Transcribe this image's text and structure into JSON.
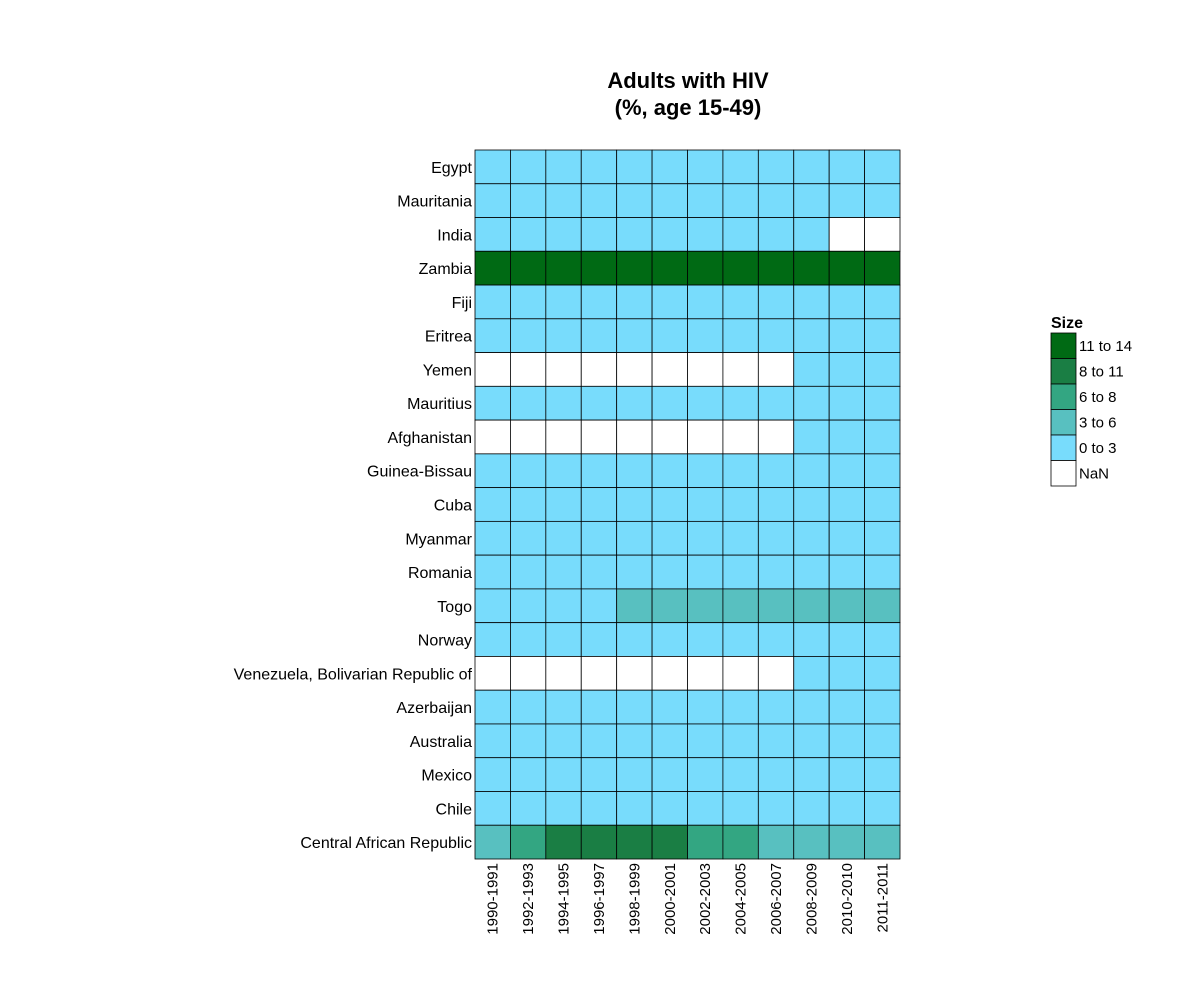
{
  "chart_data": {
    "type": "heatmap",
    "title": [
      "Adults with HIV",
      "(%, age 15-49)"
    ],
    "columns": [
      "1990-1991",
      "1992-1993",
      "1994-1995",
      "1996-1997",
      "1998-1999",
      "2000-2001",
      "2002-2003",
      "2004-2005",
      "2006-2007",
      "2008-2009",
      "2010-2010",
      "2011-2011"
    ],
    "rows": [
      "Egypt",
      "Mauritania",
      "India",
      "Zambia",
      "Fiji",
      "Eritrea",
      "Yemen",
      "Mauritius",
      "Afghanistan",
      "Guinea-Bissau",
      "Cuba",
      "Myanmar",
      "Romania",
      "Togo",
      "Norway",
      "Venezuela, Bolivarian Republic of",
      "Azerbaijan",
      "Australia",
      "Mexico",
      "Chile",
      "Central African Republic"
    ],
    "values": [
      [
        "0 to 3",
        "0 to 3",
        "0 to 3",
        "0 to 3",
        "0 to 3",
        "0 to 3",
        "0 to 3",
        "0 to 3",
        "0 to 3",
        "0 to 3",
        "0 to 3",
        "0 to 3"
      ],
      [
        "0 to 3",
        "0 to 3",
        "0 to 3",
        "0 to 3",
        "0 to 3",
        "0 to 3",
        "0 to 3",
        "0 to 3",
        "0 to 3",
        "0 to 3",
        "0 to 3",
        "0 to 3"
      ],
      [
        "0 to 3",
        "0 to 3",
        "0 to 3",
        "0 to 3",
        "0 to 3",
        "0 to 3",
        "0 to 3",
        "0 to 3",
        "0 to 3",
        "0 to 3",
        "NaN",
        "NaN"
      ],
      [
        "11 to 14",
        "11 to 14",
        "11 to 14",
        "11 to 14",
        "11 to 14",
        "11 to 14",
        "11 to 14",
        "11 to 14",
        "11 to 14",
        "11 to 14",
        "11 to 14",
        "11 to 14"
      ],
      [
        "0 to 3",
        "0 to 3",
        "0 to 3",
        "0 to 3",
        "0 to 3",
        "0 to 3",
        "0 to 3",
        "0 to 3",
        "0 to 3",
        "0 to 3",
        "0 to 3",
        "0 to 3"
      ],
      [
        "0 to 3",
        "0 to 3",
        "0 to 3",
        "0 to 3",
        "0 to 3",
        "0 to 3",
        "0 to 3",
        "0 to 3",
        "0 to 3",
        "0 to 3",
        "0 to 3",
        "0 to 3"
      ],
      [
        "NaN",
        "NaN",
        "NaN",
        "NaN",
        "NaN",
        "NaN",
        "NaN",
        "NaN",
        "NaN",
        "0 to 3",
        "0 to 3",
        "0 to 3"
      ],
      [
        "0 to 3",
        "0 to 3",
        "0 to 3",
        "0 to 3",
        "0 to 3",
        "0 to 3",
        "0 to 3",
        "0 to 3",
        "0 to 3",
        "0 to 3",
        "0 to 3",
        "0 to 3"
      ],
      [
        "NaN",
        "NaN",
        "NaN",
        "NaN",
        "NaN",
        "NaN",
        "NaN",
        "NaN",
        "NaN",
        "0 to 3",
        "0 to 3",
        "0 to 3"
      ],
      [
        "0 to 3",
        "0 to 3",
        "0 to 3",
        "0 to 3",
        "0 to 3",
        "0 to 3",
        "0 to 3",
        "0 to 3",
        "0 to 3",
        "0 to 3",
        "0 to 3",
        "0 to 3"
      ],
      [
        "0 to 3",
        "0 to 3",
        "0 to 3",
        "0 to 3",
        "0 to 3",
        "0 to 3",
        "0 to 3",
        "0 to 3",
        "0 to 3",
        "0 to 3",
        "0 to 3",
        "0 to 3"
      ],
      [
        "0 to 3",
        "0 to 3",
        "0 to 3",
        "0 to 3",
        "0 to 3",
        "0 to 3",
        "0 to 3",
        "0 to 3",
        "0 to 3",
        "0 to 3",
        "0 to 3",
        "0 to 3"
      ],
      [
        "0 to 3",
        "0 to 3",
        "0 to 3",
        "0 to 3",
        "0 to 3",
        "0 to 3",
        "0 to 3",
        "0 to 3",
        "0 to 3",
        "0 to 3",
        "0 to 3",
        "0 to 3"
      ],
      [
        "0 to 3",
        "0 to 3",
        "0 to 3",
        "0 to 3",
        "3 to 6",
        "3 to 6",
        "3 to 6",
        "3 to 6",
        "3 to 6",
        "3 to 6",
        "3 to 6",
        "3 to 6"
      ],
      [
        "0 to 3",
        "0 to 3",
        "0 to 3",
        "0 to 3",
        "0 to 3",
        "0 to 3",
        "0 to 3",
        "0 to 3",
        "0 to 3",
        "0 to 3",
        "0 to 3",
        "0 to 3"
      ],
      [
        "NaN",
        "NaN",
        "NaN",
        "NaN",
        "NaN",
        "NaN",
        "NaN",
        "NaN",
        "NaN",
        "0 to 3",
        "0 to 3",
        "0 to 3"
      ],
      [
        "0 to 3",
        "0 to 3",
        "0 to 3",
        "0 to 3",
        "0 to 3",
        "0 to 3",
        "0 to 3",
        "0 to 3",
        "0 to 3",
        "0 to 3",
        "0 to 3",
        "0 to 3"
      ],
      [
        "0 to 3",
        "0 to 3",
        "0 to 3",
        "0 to 3",
        "0 to 3",
        "0 to 3",
        "0 to 3",
        "0 to 3",
        "0 to 3",
        "0 to 3",
        "0 to 3",
        "0 to 3"
      ],
      [
        "0 to 3",
        "0 to 3",
        "0 to 3",
        "0 to 3",
        "0 to 3",
        "0 to 3",
        "0 to 3",
        "0 to 3",
        "0 to 3",
        "0 to 3",
        "0 to 3",
        "0 to 3"
      ],
      [
        "0 to 3",
        "0 to 3",
        "0 to 3",
        "0 to 3",
        "0 to 3",
        "0 to 3",
        "0 to 3",
        "0 to 3",
        "0 to 3",
        "0 to 3",
        "0 to 3",
        "0 to 3"
      ],
      [
        "3 to 6",
        "6 to 8",
        "8 to 11",
        "8 to 11",
        "8 to 11",
        "8 to 11",
        "6 to 8",
        "6 to 8",
        "3 to 6",
        "3 to 6",
        "3 to 6",
        "3 to 6"
      ]
    ],
    "legend": {
      "title": "Size",
      "placement": "right",
      "items": [
        {
          "label": "11 to 14",
          "color": "#006a14"
        },
        {
          "label": "8 to 11",
          "color": "#1a7e44"
        },
        {
          "label": "6 to 8",
          "color": "#33a682"
        },
        {
          "label": "3 to 6",
          "color": "#58c0c0"
        },
        {
          "label": "0 to 3",
          "color": "#78dcfc"
        },
        {
          "label": "NaN",
          "color": "#ffffff"
        }
      ]
    }
  }
}
